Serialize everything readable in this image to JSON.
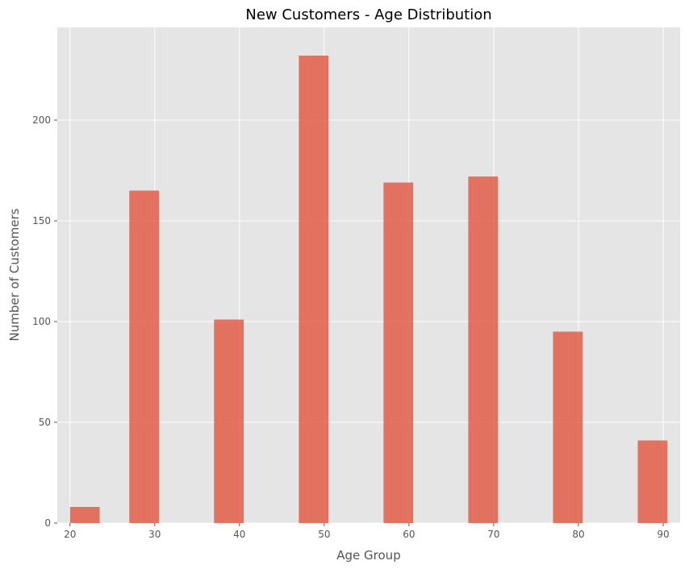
{
  "chart_data": {
    "type": "bar",
    "title": "New Customers - Age Distribution",
    "xlabel": "Age Group",
    "ylabel": "Number of Customers",
    "bins": [
      {
        "from": 20.0,
        "to": 23.5,
        "value": 8
      },
      {
        "from": 27.0,
        "to": 30.5,
        "value": 165
      },
      {
        "from": 37.0,
        "to": 40.5,
        "value": 101
      },
      {
        "from": 47.0,
        "to": 50.5,
        "value": 232
      },
      {
        "from": 57.0,
        "to": 60.5,
        "value": 169
      },
      {
        "from": 67.0,
        "to": 70.5,
        "value": 172
      },
      {
        "from": 77.0,
        "to": 80.5,
        "value": 95
      },
      {
        "from": 87.0,
        "to": 90.5,
        "value": 41
      }
    ],
    "xlim": [
      18.5,
      92.0
    ],
    "ylim": [
      0,
      246
    ],
    "xticks": [
      20,
      30,
      40,
      50,
      60,
      70,
      80,
      90
    ],
    "yticks": [
      0,
      50,
      100,
      150,
      200
    ],
    "grid": true,
    "colors": {
      "bar": "#e24a33",
      "background": "#e5e5e5",
      "grid": "#ffffff"
    }
  }
}
